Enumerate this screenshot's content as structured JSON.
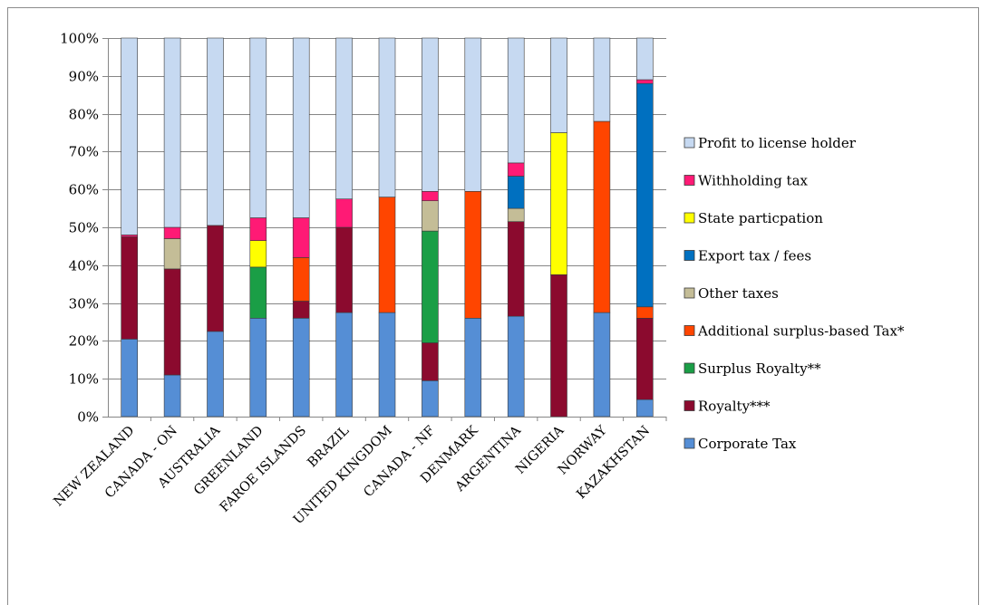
{
  "chart_data": {
    "type": "bar",
    "stacked": true,
    "percent_stacked": true,
    "title": "",
    "xlabel": "",
    "ylabel": "",
    "ylim": [
      0,
      100
    ],
    "ytick_labels": [
      "0%",
      "10%",
      "20%",
      "30%",
      "40%",
      "50%",
      "60%",
      "70%",
      "80%",
      "90%",
      "100%"
    ],
    "grid": true,
    "legend_position": "right",
    "categories": [
      "NEW ZEALAND",
      "CANADA - ON",
      "AUSTRALIA",
      "GREENLAND",
      "FAROE ISLANDS",
      "BRAZIL",
      "UNITED KINGDOM",
      "CANADA - NF",
      "DENMARK",
      "ARGENTINA",
      "NIGERIA",
      "NORWAY",
      "KAZAKHSTAN"
    ],
    "series": [
      {
        "name": "Corporate Tax",
        "color": "#558ed5",
        "values": [
          20.5,
          11,
          22.5,
          26,
          26,
          27.5,
          27.5,
          9.5,
          26,
          26.5,
          0,
          27.5,
          4.5
        ]
      },
      {
        "name": "Royalty***",
        "color": "#8b0a2e",
        "values": [
          27,
          28,
          28,
          0,
          4.5,
          22.5,
          0,
          10,
          0,
          25,
          37.5,
          0,
          21.5
        ]
      },
      {
        "name": "Surplus Royalty**",
        "color": "#1a9e46",
        "values": [
          0,
          0,
          0,
          13.5,
          0,
          0,
          0,
          29.5,
          0,
          0,
          0,
          0,
          0
        ]
      },
      {
        "name": "Additional surplus-based Tax*",
        "color": "#ff4500",
        "values": [
          0,
          0,
          0,
          0,
          11.5,
          0,
          30.5,
          0,
          33.5,
          0,
          0,
          50.5,
          3
        ]
      },
      {
        "name": "Other taxes",
        "color": "#c4bd97",
        "values": [
          0,
          8,
          0,
          0,
          0,
          0,
          0,
          8,
          0,
          3.5,
          0,
          0,
          0
        ]
      },
      {
        "name": "Export tax / fees",
        "color": "#0070c0",
        "values": [
          0,
          0,
          0,
          0,
          0,
          0,
          0,
          0,
          0,
          8.5,
          0,
          0,
          59
        ]
      },
      {
        "name": "State particpation",
        "color": "#ffff00",
        "values": [
          0,
          0,
          0,
          7,
          0,
          0,
          0,
          0,
          0,
          0,
          37.5,
          0,
          0
        ]
      },
      {
        "name": "Withholding tax",
        "color": "#ff1a75",
        "values": [
          0.5,
          3,
          0,
          6,
          10.5,
          7.5,
          0,
          2.5,
          0,
          3.5,
          0,
          0,
          1
        ]
      },
      {
        "name": "Profit to license holder",
        "color": "#c6d9f1",
        "values": [
          52,
          50,
          49.5,
          47.5,
          47.5,
          42.5,
          42,
          40.5,
          40.5,
          33,
          25,
          22,
          11
        ]
      }
    ]
  }
}
